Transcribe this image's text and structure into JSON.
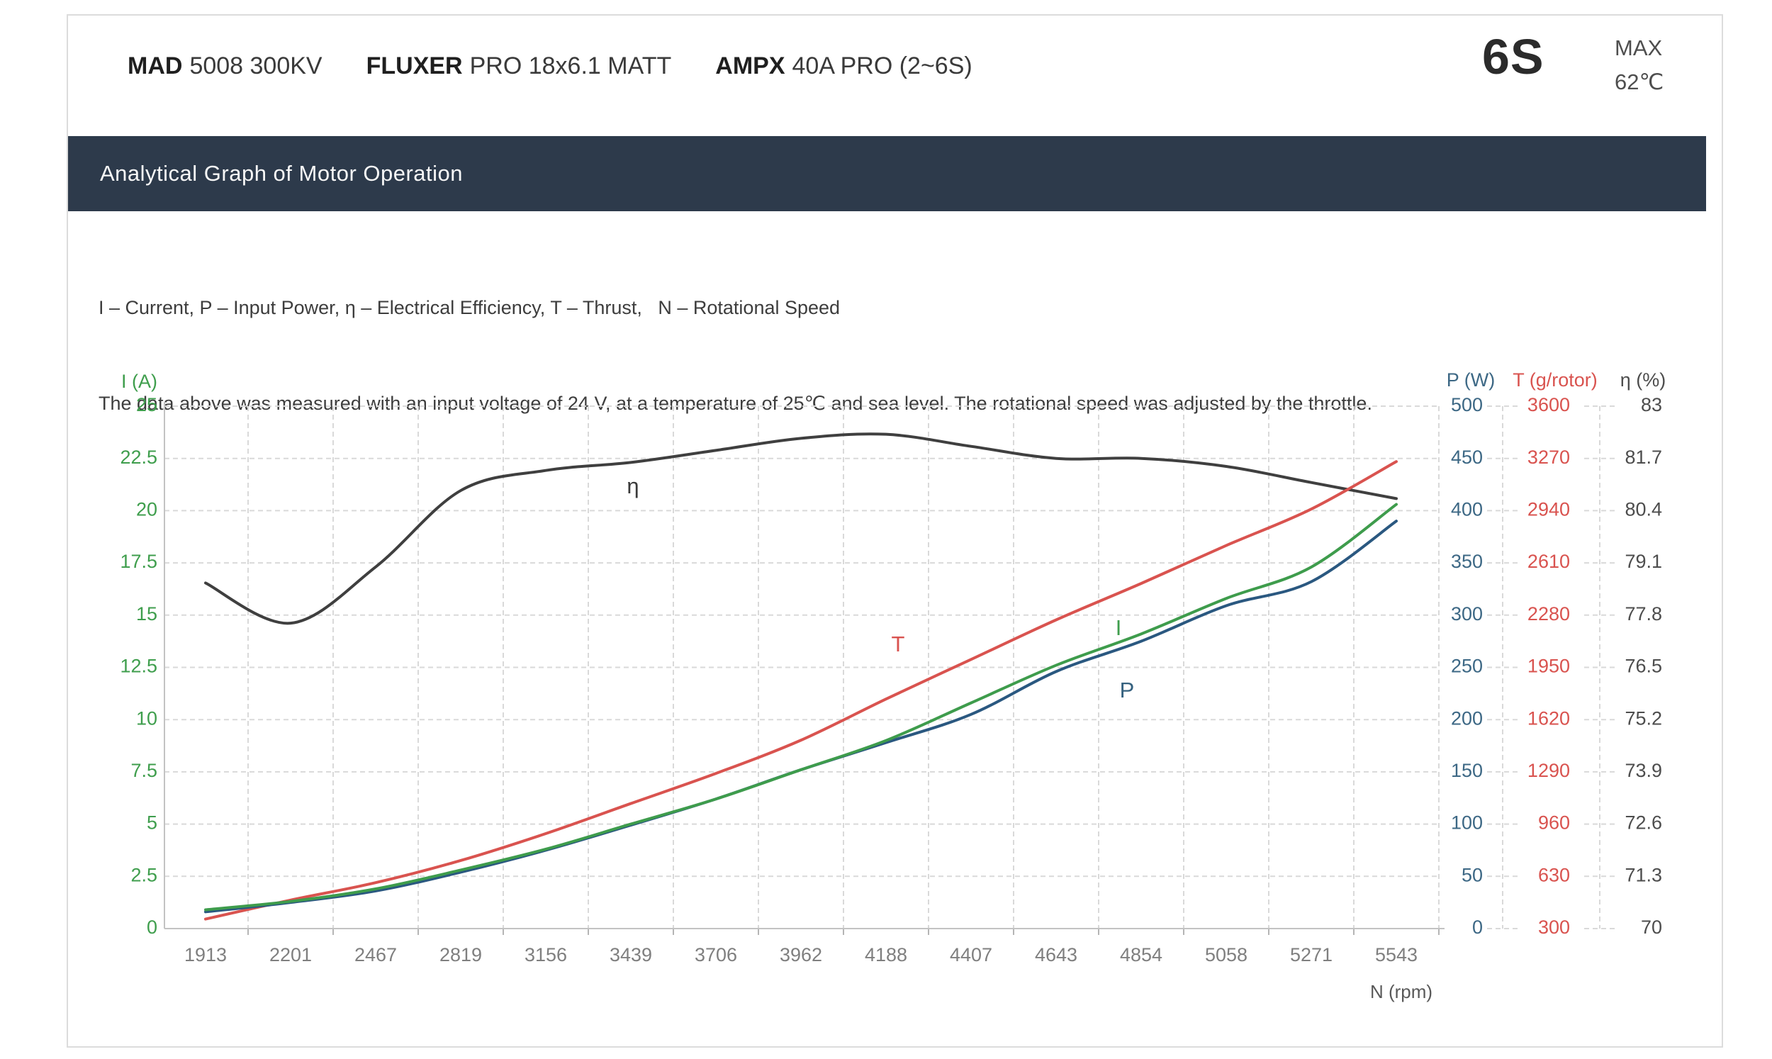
{
  "header": {
    "products": [
      {
        "brand": "MAD",
        "rest": "5008 300KV"
      },
      {
        "brand": "FLUXER",
        "rest": "PRO 18x6.1 MATT"
      },
      {
        "brand": "AMPX",
        "rest": "40A PRO (2~6S)"
      }
    ],
    "battery_rating": "6S",
    "max_label": "MAX",
    "max_temp": "62℃"
  },
  "banner": {
    "title": "Analytical Graph of Motor Operation"
  },
  "description": {
    "line1": "I – Current, P – Input Power, η – Electrical Efficiency, T – Thrust,   N – Rotational Speed",
    "line2": "The data above was measured with an input voltage of 24 V, at a temperature of 25℃ and sea level. The rotational speed was adjusted by the throttle."
  },
  "chart_data": {
    "type": "line",
    "x_axis_label": "N (rpm)",
    "categories": [
      "1913",
      "2201",
      "2467",
      "2819",
      "3156",
      "3439",
      "3706",
      "3962",
      "4188",
      "4407",
      "4643",
      "4854",
      "5058",
      "5271",
      "5543"
    ],
    "grid": true,
    "axes": {
      "left": {
        "title": "I (A)",
        "color": "#3f9e4d",
        "ticks": [
          "25",
          "22.5",
          "20",
          "17.5",
          "15",
          "12.5",
          "10",
          "7.5",
          "5",
          "2.5",
          "0"
        ]
      },
      "right": [
        {
          "title": "P (W)",
          "color": "#3d6885",
          "ticks": [
            "500",
            "450",
            "400",
            "350",
            "300",
            "250",
            "200",
            "150",
            "100",
            "50",
            "0"
          ]
        },
        {
          "title": "T (g/rotor)",
          "color": "#d9534f",
          "ticks": [
            "3600",
            "3270",
            "2940",
            "2610",
            "2280",
            "1950",
            "1620",
            "1290",
            "960",
            "630",
            "300"
          ]
        },
        {
          "title": "η (%)",
          "color": "#4d4d4d",
          "ticks": [
            "83",
            "81.7",
            "80.4",
            "79.1",
            "77.8",
            "76.5",
            "75.2",
            "73.9",
            "72.6",
            "71.3",
            "70"
          ]
        }
      ]
    },
    "series": [
      {
        "name": "eta",
        "label": "η",
        "unit": "%",
        "color": "#3f3f3f",
        "label_color": "#3a3a3a",
        "scale_min": 70,
        "scale_max": 83,
        "values": [
          78.6,
          77.6,
          79.0,
          80.9,
          81.4,
          81.6,
          81.9,
          82.2,
          82.3,
          82.0,
          81.7,
          81.7,
          81.5,
          81.1,
          80.7
        ],
        "curve_label": {
          "x": 893,
          "y": 688
        }
      },
      {
        "name": "T",
        "label": "T",
        "unit": "g/rotor",
        "color": "#d9534f",
        "label_color": "#d9534f",
        "scale_min": 300,
        "scale_max": 3600,
        "values": [
          360,
          480,
          590,
          730,
          900,
          1090,
          1280,
          1490,
          1750,
          2000,
          2250,
          2480,
          2720,
          2950,
          3250
        ],
        "curve_label": {
          "x": 1267,
          "y": 911
        }
      },
      {
        "name": "P",
        "label": "P",
        "unit": "W",
        "color": "#2a5880",
        "label_color": "#35617f",
        "scale_min": 0,
        "scale_max": 500,
        "values": [
          16,
          25,
          36,
          54,
          75,
          99,
          124,
          152,
          178,
          205,
          246,
          275,
          309,
          332,
          390
        ],
        "curve_label": {
          "x": 1590,
          "y": 976
        }
      },
      {
        "name": "I",
        "label": "I",
        "unit": "A",
        "color": "#3e9c4c",
        "label_color": "#3f9e4d",
        "scale_min": 0,
        "scale_max": 25,
        "values": [
          0.9,
          1.3,
          1.9,
          2.8,
          3.8,
          5.0,
          6.2,
          7.6,
          9.0,
          10.8,
          12.6,
          14.1,
          15.8,
          17.3,
          20.3
        ],
        "curve_label": {
          "x": 1578,
          "y": 888
        }
      }
    ],
    "notes": "Measured at 24 V input, 25℃, sea level; speed adjusted by throttle."
  },
  "style": {
    "banner_bg": "#2d3a4b",
    "grid_color": "#d9d9d9",
    "axis_color": "#c3c3c3",
    "tick_color": "#b5b5b5",
    "x_label_color": "#7f7f7f",
    "x_title_color": "#595959"
  }
}
